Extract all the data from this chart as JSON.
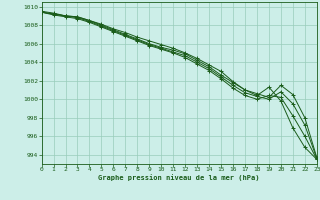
{
  "title": "Graphe pression niveau de la mer (hPa)",
  "background_color": "#cceee8",
  "grid_color": "#99ccbb",
  "line_color": "#1a5c1a",
  "xlim": [
    0,
    23
  ],
  "ylim": [
    993.0,
    1010.5
  ],
  "yticks": [
    994,
    996,
    998,
    1000,
    1002,
    1004,
    1006,
    1008,
    1010
  ],
  "xticks": [
    0,
    1,
    2,
    3,
    4,
    5,
    6,
    7,
    8,
    9,
    10,
    11,
    12,
    13,
    14,
    15,
    16,
    17,
    18,
    19,
    20,
    21,
    22,
    23
  ],
  "series": [
    [
      1009.5,
      1009.3,
      1009.0,
      1008.9,
      1008.5,
      1008.1,
      1007.6,
      1007.2,
      1006.7,
      1006.3,
      1005.9,
      1005.5,
      1005.0,
      1004.4,
      1003.7,
      1003.0,
      1001.9,
      1001.0,
      1000.4,
      1001.3,
      999.8,
      996.9,
      994.8,
      993.5
    ],
    [
      1009.4,
      1009.1,
      1008.9,
      1008.7,
      1008.3,
      1007.8,
      1007.3,
      1006.8,
      1006.3,
      1005.8,
      1005.4,
      1005.0,
      1004.5,
      1003.8,
      1003.1,
      1002.2,
      1001.2,
      1000.4,
      1000.0,
      1000.4,
      1000.2,
      998.2,
      996.0,
      993.5
    ],
    [
      1009.4,
      1009.2,
      1009.0,
      1008.8,
      1008.4,
      1007.9,
      1007.4,
      1006.9,
      1006.4,
      1005.9,
      1005.5,
      1005.1,
      1004.7,
      1004.0,
      1003.3,
      1002.4,
      1001.5,
      1000.7,
      1000.3,
      1000.0,
      1000.8,
      999.5,
      997.2,
      993.6
    ],
    [
      1009.4,
      1009.2,
      1009.0,
      1008.9,
      1008.5,
      1008.0,
      1007.5,
      1007.0,
      1006.5,
      1006.0,
      1005.6,
      1005.3,
      1004.9,
      1004.2,
      1003.5,
      1002.6,
      1001.8,
      1001.0,
      1000.6,
      1000.2,
      1001.5,
      1000.5,
      998.0,
      993.7
    ]
  ]
}
